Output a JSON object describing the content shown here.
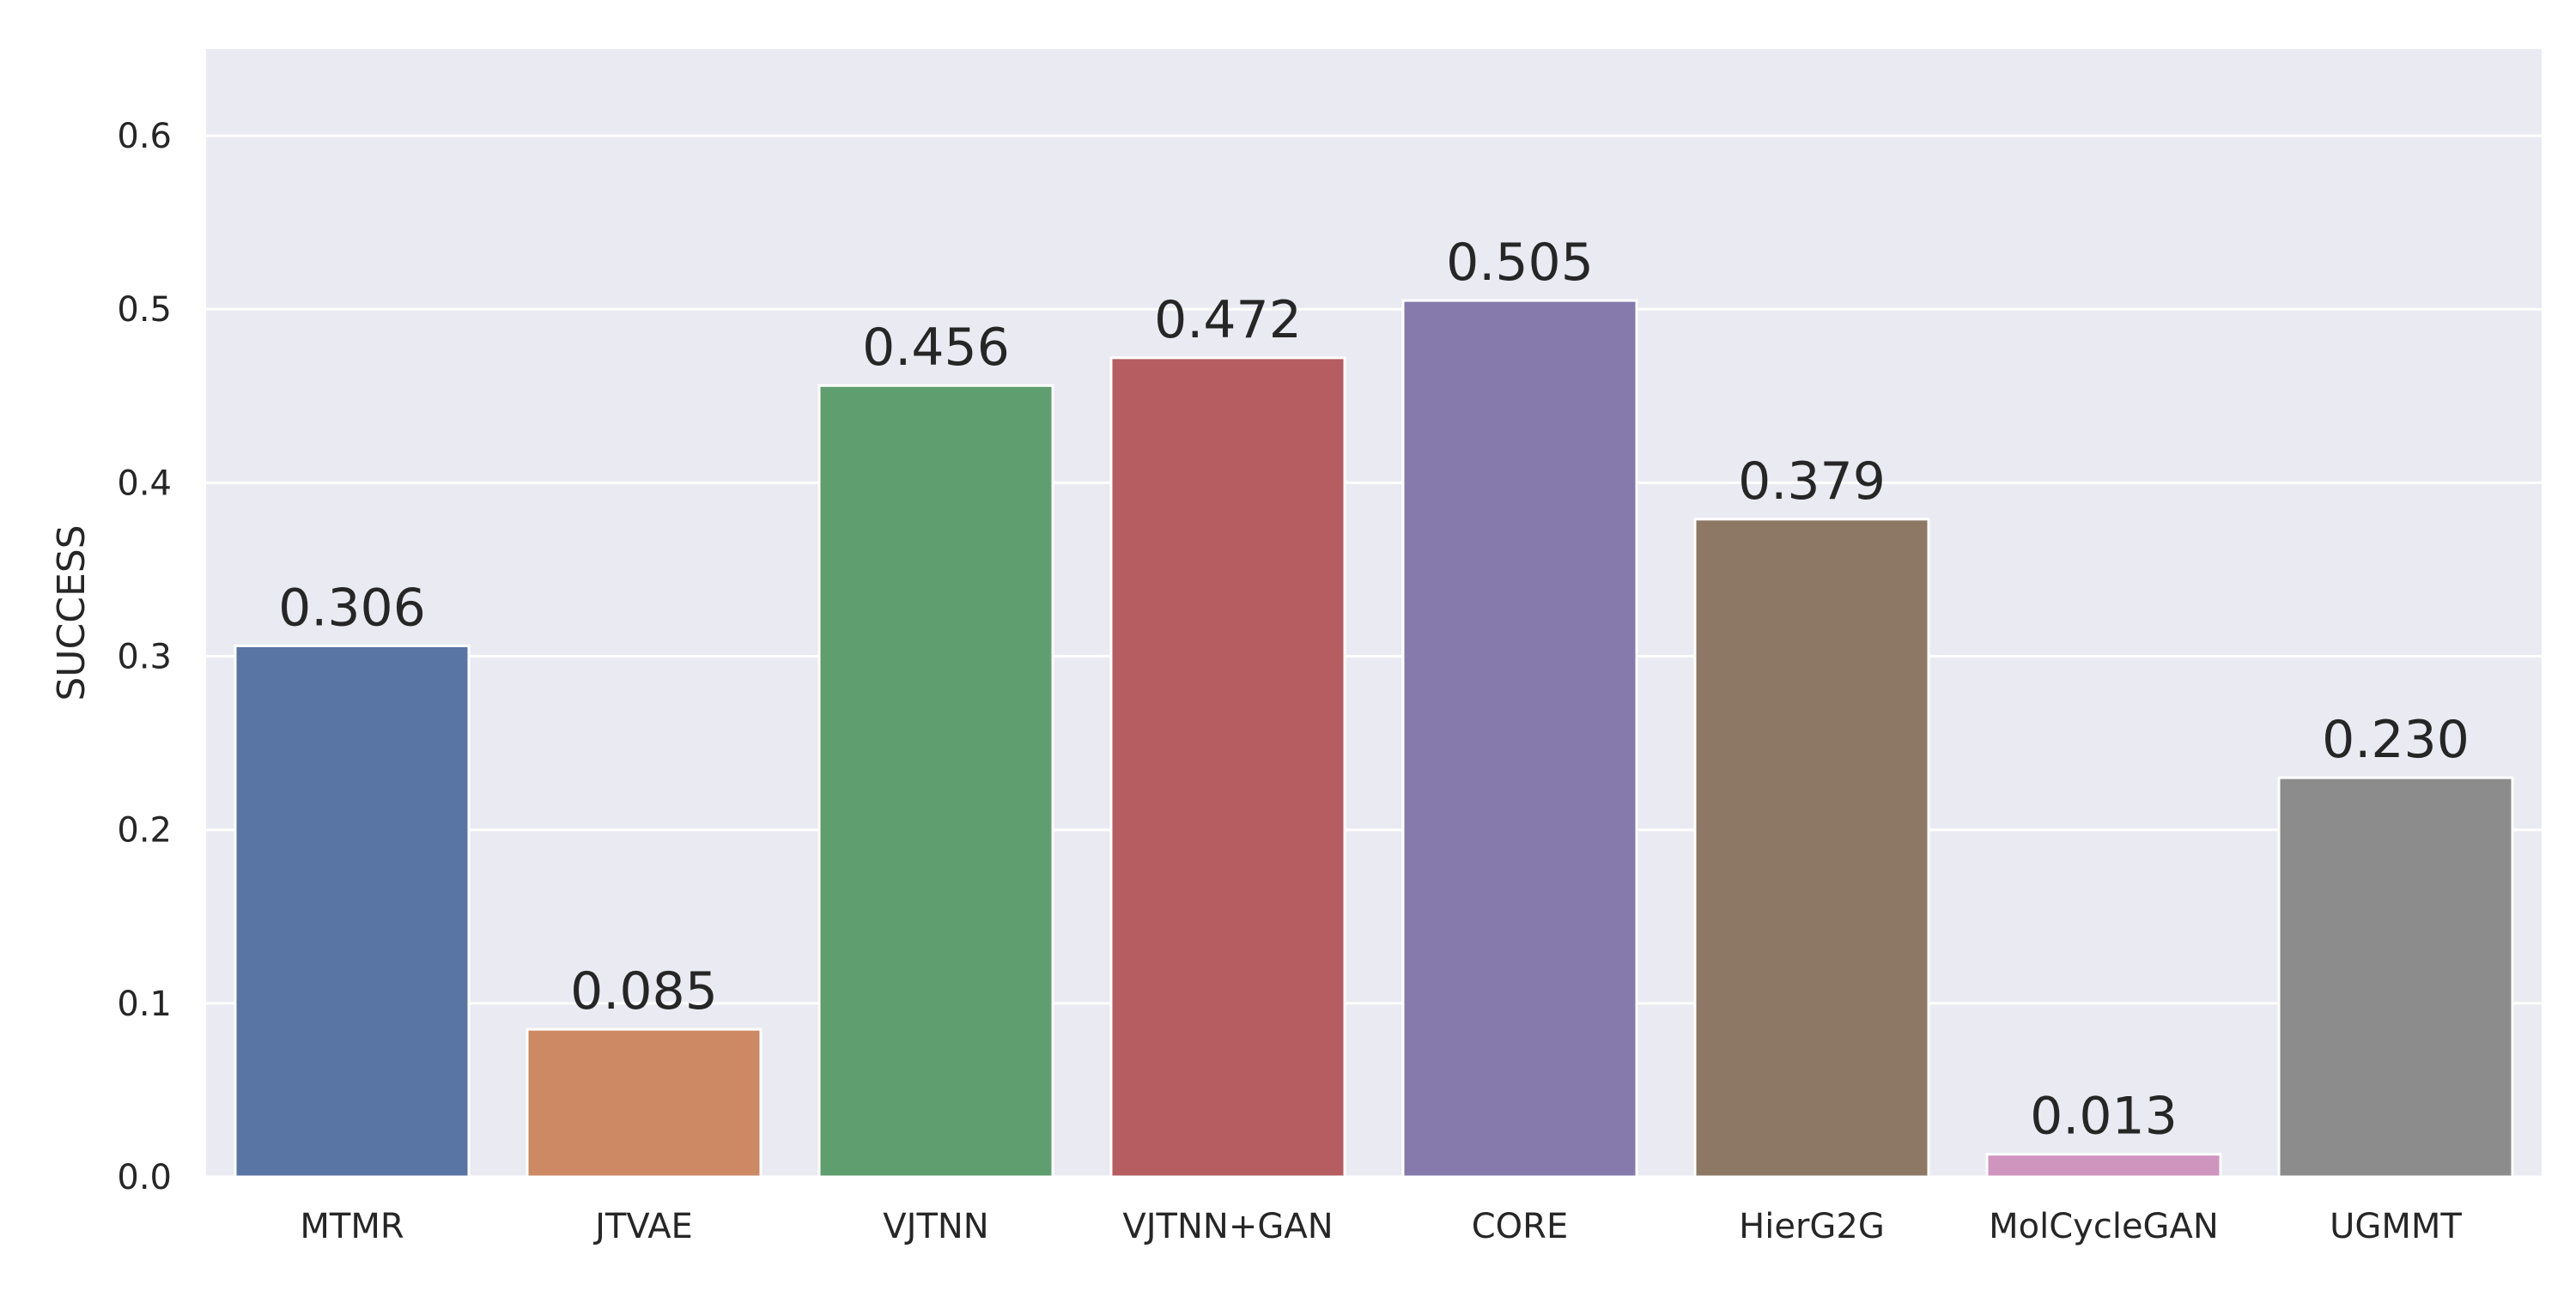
{
  "chart_data": {
    "type": "bar",
    "title": "",
    "xlabel": "",
    "ylabel": "SUCCESS",
    "ylim": [
      0,
      0.65
    ],
    "yticks": [
      "0.0",
      "0.1",
      "0.2",
      "0.3",
      "0.4",
      "0.5",
      "0.6"
    ],
    "grid": true,
    "categories": [
      "MTMR",
      "JTVAE",
      "VJTNN",
      "VJTNN+GAN",
      "CORE",
      "HierG2G",
      "MolCycleGAN",
      "UGMMT"
    ],
    "values": [
      0.306,
      0.085,
      0.456,
      0.472,
      0.505,
      0.379,
      0.013,
      0.23
    ],
    "value_labels": [
      "0.306",
      "0.085",
      "0.456",
      "0.472",
      "0.505",
      "0.379",
      "0.013",
      "0.230"
    ],
    "colors": [
      "#5875a4",
      "#cc8963",
      "#5f9e6e",
      "#b55d60",
      "#857aab",
      "#8d7866",
      "#d095bf",
      "#8c8c8c"
    ],
    "plot_background": "#eaeaf2",
    "grid_color": "#ffffff"
  }
}
